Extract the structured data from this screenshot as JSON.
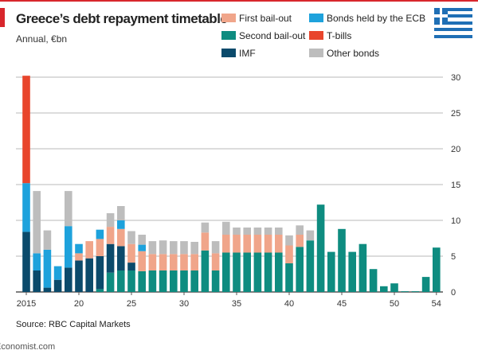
{
  "header": {
    "title": "Greece’s debt repayment timetable",
    "subtitle": "Annual, €bn"
  },
  "footer": {
    "source": "Source: RBC Capital Markets",
    "credit": "Economist.com"
  },
  "colors": {
    "accent": "#d8262c",
    "flag_blue": "#1f6fb5"
  },
  "icons": {
    "flag": "greek-flag-icon"
  },
  "chart_data": {
    "type": "bar",
    "stacked": true,
    "title": "Greece’s debt repayment timetable",
    "subtitle": "Annual, €bn",
    "ylim": [
      0,
      30
    ],
    "yticks": [
      0,
      5,
      10,
      15,
      20,
      25,
      30
    ],
    "y_axis_side": "right",
    "grid": true,
    "xticks": [
      {
        "year": 2015,
        "label": "2015"
      },
      {
        "year": 2020,
        "label": "20"
      },
      {
        "year": 2025,
        "label": "25"
      },
      {
        "year": 2030,
        "label": "30"
      },
      {
        "year": 2035,
        "label": "35"
      },
      {
        "year": 2040,
        "label": "40"
      },
      {
        "year": 2045,
        "label": "45"
      },
      {
        "year": 2050,
        "label": "50"
      },
      {
        "year": 2054,
        "label": "54"
      }
    ],
    "categories": [
      2015,
      2016,
      2017,
      2018,
      2019,
      2020,
      2021,
      2022,
      2023,
      2024,
      2025,
      2026,
      2027,
      2028,
      2029,
      2030,
      2031,
      2032,
      2033,
      2034,
      2035,
      2036,
      2037,
      2038,
      2039,
      2040,
      2041,
      2042,
      2043,
      2044,
      2045,
      2046,
      2047,
      2048,
      2049,
      2050,
      2051,
      2052,
      2053,
      2054
    ],
    "legend_placement": "top",
    "series": [
      {
        "name": "Second bail-out",
        "color": "#0e8c80",
        "values": [
          0,
          0,
          0,
          0,
          0,
          0,
          0,
          0.4,
          2.7,
          3,
          3,
          2.9,
          3,
          3,
          3,
          3,
          3,
          5.8,
          3,
          5.5,
          5.5,
          5.5,
          5.5,
          5.5,
          5.5,
          4,
          6.3,
          7.2,
          12.2,
          5.6,
          8.8,
          5.6,
          6.7,
          3.2,
          0.8,
          1.2,
          0.1,
          0.1,
          2.1,
          6.2
        ]
      },
      {
        "name": "IMF",
        "color": "#0b4a6b",
        "values": [
          8.4,
          3,
          0.6,
          1.7,
          3.4,
          4.4,
          4.7,
          4.6,
          4,
          3.4,
          1.1,
          0,
          0,
          0,
          0,
          0,
          0,
          0,
          0,
          0,
          0,
          0,
          0,
          0,
          0,
          0,
          0,
          0,
          0,
          0,
          0,
          0,
          0,
          0,
          0,
          0,
          0,
          0,
          0,
          0
        ]
      },
      {
        "name": "First bail-out",
        "color": "#f0a58a",
        "values": [
          0,
          0,
          0,
          0,
          0,
          1,
          2.4,
          2.4,
          2.4,
          2.4,
          2.6,
          2.8,
          2.3,
          2.3,
          2.3,
          2.3,
          2.3,
          2.5,
          2.4,
          2.5,
          2.5,
          2.5,
          2.5,
          2.5,
          2.5,
          2.5,
          1.7,
          0,
          0,
          0,
          0,
          0,
          0,
          0,
          0,
          0,
          0,
          0,
          0,
          0
        ]
      },
      {
        "name": "Bonds held by the ECB",
        "color": "#1ea2dc",
        "values": [
          6.8,
          2.4,
          5.3,
          1.9,
          5.8,
          1.3,
          0,
          1.3,
          0,
          1.2,
          0,
          0.9,
          0,
          0,
          0,
          0,
          0,
          0,
          0,
          0,
          0,
          0,
          0,
          0,
          0,
          0,
          0,
          0,
          0,
          0,
          0,
          0,
          0,
          0,
          0,
          0,
          0,
          0,
          0,
          0
        ]
      },
      {
        "name": "T-bills",
        "color": "#e8452c",
        "values": [
          15,
          0,
          0,
          0,
          0,
          0,
          0,
          0,
          0,
          0,
          0,
          0,
          0,
          0,
          0,
          0,
          0,
          0,
          0,
          0,
          0,
          0,
          0,
          0,
          0,
          0,
          0,
          0,
          0,
          0,
          0,
          0,
          0,
          0,
          0,
          0,
          0,
          0,
          0,
          0
        ]
      },
      {
        "name": "Other bonds",
        "color": "#bdbdbd",
        "values": [
          0,
          8.7,
          2.7,
          0,
          4.9,
          0,
          0,
          0,
          1.9,
          2,
          1.8,
          1.4,
          1.8,
          1.9,
          1.8,
          1.8,
          1.7,
          1.4,
          1.7,
          1.8,
          1,
          1,
          1,
          1,
          1,
          1.4,
          1.3,
          1.4,
          0,
          0,
          0,
          0,
          0,
          0,
          0,
          0,
          0,
          0,
          0,
          0
        ]
      }
    ],
    "legend_order": [
      "First bail-out",
      "Bonds held by the ECB",
      "Second bail-out",
      "T-bills",
      "IMF",
      "Other bonds"
    ]
  }
}
